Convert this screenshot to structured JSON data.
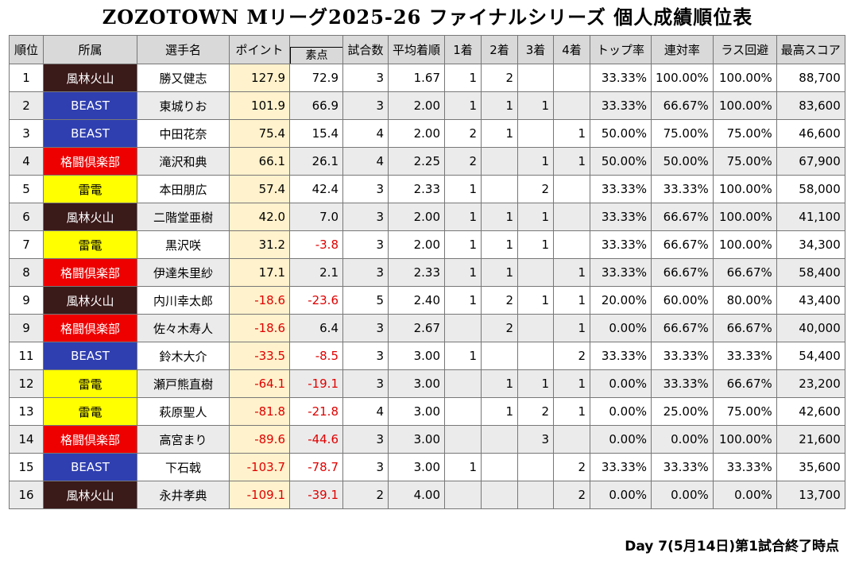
{
  "title": "ZOZOTOWN Mリーグ2025-26 ファイナルシリーズ 個人成績順位表",
  "headers": [
    "順位",
    "所属",
    "選手名",
    "ポイント",
    "素点",
    "試合数",
    "平均着順",
    "1着",
    "2着",
    "3着",
    "4着",
    "トップ率",
    "連対率",
    "ラス回避",
    "最高スコア"
  ],
  "rows": [
    {
      "rank": "1",
      "team": "風林火山",
      "team_key": "furin",
      "name": "勝又健志",
      "point": "127.9",
      "raw": "72.9",
      "games": "3",
      "avg": "1.67",
      "p1": "1",
      "p2": "2",
      "p3": "",
      "p4": "",
      "top": "33.33%",
      "rentai": "100.00%",
      "las": "100.00%",
      "high": "88,700"
    },
    {
      "rank": "2",
      "team": "BEAST",
      "team_key": "beast",
      "name": "東城りお",
      "point": "101.9",
      "raw": "66.9",
      "games": "3",
      "avg": "2.00",
      "p1": "1",
      "p2": "1",
      "p3": "1",
      "p4": "",
      "top": "33.33%",
      "rentai": "66.67%",
      "las": "100.00%",
      "high": "83,600"
    },
    {
      "rank": "3",
      "team": "BEAST",
      "team_key": "beast",
      "name": "中田花奈",
      "point": "75.4",
      "raw": "15.4",
      "games": "4",
      "avg": "2.00",
      "p1": "2",
      "p2": "1",
      "p3": "",
      "p4": "1",
      "top": "50.00%",
      "rentai": "75.00%",
      "las": "75.00%",
      "high": "46,600"
    },
    {
      "rank": "4",
      "team": "格闘倶楽部",
      "team_key": "kakuto",
      "name": "滝沢和典",
      "point": "66.1",
      "raw": "26.1",
      "games": "4",
      "avg": "2.25",
      "p1": "2",
      "p2": "",
      "p3": "1",
      "p4": "1",
      "top": "50.00%",
      "rentai": "50.00%",
      "las": "75.00%",
      "high": "67,900"
    },
    {
      "rank": "5",
      "team": "雷電",
      "team_key": "raiden",
      "name": "本田朋広",
      "point": "57.4",
      "raw": "42.4",
      "games": "3",
      "avg": "2.33",
      "p1": "1",
      "p2": "",
      "p3": "2",
      "p4": "",
      "top": "33.33%",
      "rentai": "33.33%",
      "las": "100.00%",
      "high": "58,000"
    },
    {
      "rank": "6",
      "team": "風林火山",
      "team_key": "furin",
      "name": "二階堂亜樹",
      "point": "42.0",
      "raw": "7.0",
      "games": "3",
      "avg": "2.00",
      "p1": "1",
      "p2": "1",
      "p3": "1",
      "p4": "",
      "top": "33.33%",
      "rentai": "66.67%",
      "las": "100.00%",
      "high": "41,100"
    },
    {
      "rank": "7",
      "team": "雷電",
      "team_key": "raiden",
      "name": "黒沢咲",
      "point": "31.2",
      "raw": "-3.8",
      "games": "3",
      "avg": "2.00",
      "p1": "1",
      "p2": "1",
      "p3": "1",
      "p4": "",
      "top": "33.33%",
      "rentai": "66.67%",
      "las": "100.00%",
      "high": "34,300"
    },
    {
      "rank": "8",
      "team": "格闘倶楽部",
      "team_key": "kakuto",
      "name": "伊達朱里紗",
      "point": "17.1",
      "raw": "2.1",
      "games": "3",
      "avg": "2.33",
      "p1": "1",
      "p2": "1",
      "p3": "",
      "p4": "1",
      "top": "33.33%",
      "rentai": "66.67%",
      "las": "66.67%",
      "high": "58,400"
    },
    {
      "rank": "9",
      "team": "風林火山",
      "team_key": "furin",
      "name": "内川幸太郎",
      "point": "-18.6",
      "raw": "-23.6",
      "games": "5",
      "avg": "2.40",
      "p1": "1",
      "p2": "2",
      "p3": "1",
      "p4": "1",
      "top": "20.00%",
      "rentai": "60.00%",
      "las": "80.00%",
      "high": "43,400"
    },
    {
      "rank": "9",
      "team": "格闘倶楽部",
      "team_key": "kakuto",
      "name": "佐々木寿人",
      "point": "-18.6",
      "raw": "6.4",
      "games": "3",
      "avg": "2.67",
      "p1": "",
      "p2": "2",
      "p3": "",
      "p4": "1",
      "top": "0.00%",
      "rentai": "66.67%",
      "las": "66.67%",
      "high": "40,000"
    },
    {
      "rank": "11",
      "team": "BEAST",
      "team_key": "beast",
      "name": "鈴木大介",
      "point": "-33.5",
      "raw": "-8.5",
      "games": "3",
      "avg": "3.00",
      "p1": "1",
      "p2": "",
      "p3": "",
      "p4": "2",
      "top": "33.33%",
      "rentai": "33.33%",
      "las": "33.33%",
      "high": "54,400"
    },
    {
      "rank": "12",
      "team": "雷電",
      "team_key": "raiden",
      "name": "瀬戸熊直樹",
      "point": "-64.1",
      "raw": "-19.1",
      "games": "3",
      "avg": "3.00",
      "p1": "",
      "p2": "1",
      "p3": "1",
      "p4": "1",
      "top": "0.00%",
      "rentai": "33.33%",
      "las": "66.67%",
      "high": "23,200"
    },
    {
      "rank": "13",
      "team": "雷電",
      "team_key": "raiden",
      "name": "萩原聖人",
      "point": "-81.8",
      "raw": "-21.8",
      "games": "4",
      "avg": "3.00",
      "p1": "",
      "p2": "1",
      "p3": "2",
      "p4": "1",
      "top": "0.00%",
      "rentai": "25.00%",
      "las": "75.00%",
      "high": "42,600"
    },
    {
      "rank": "14",
      "team": "格闘倶楽部",
      "team_key": "kakuto",
      "name": "高宮まり",
      "point": "-89.6",
      "raw": "-44.6",
      "games": "3",
      "avg": "3.00",
      "p1": "",
      "p2": "",
      "p3": "3",
      "p4": "",
      "top": "0.00%",
      "rentai": "0.00%",
      "las": "100.00%",
      "high": "21,600"
    },
    {
      "rank": "15",
      "team": "BEAST",
      "team_key": "beast",
      "name": "下石戟",
      "point": "-103.7",
      "raw": "-78.7",
      "games": "3",
      "avg": "3.00",
      "p1": "1",
      "p2": "",
      "p3": "",
      "p4": "2",
      "top": "33.33%",
      "rentai": "33.33%",
      "las": "33.33%",
      "high": "35,600"
    },
    {
      "rank": "16",
      "team": "風林火山",
      "team_key": "furin",
      "name": "永井孝典",
      "point": "-109.1",
      "raw": "-39.1",
      "games": "2",
      "avg": "4.00",
      "p1": "",
      "p2": "",
      "p3": "",
      "p4": "2",
      "top": "0.00%",
      "rentai": "0.00%",
      "las": "0.00%",
      "high": "13,700"
    }
  ],
  "team_colors": {
    "furin": "#3b1a1a",
    "beast": "#2f3fb0",
    "raiden": "#ffff00",
    "kakuto": "#ee0000"
  },
  "footer": "Day 7(5月14日)第1試合終了時点"
}
